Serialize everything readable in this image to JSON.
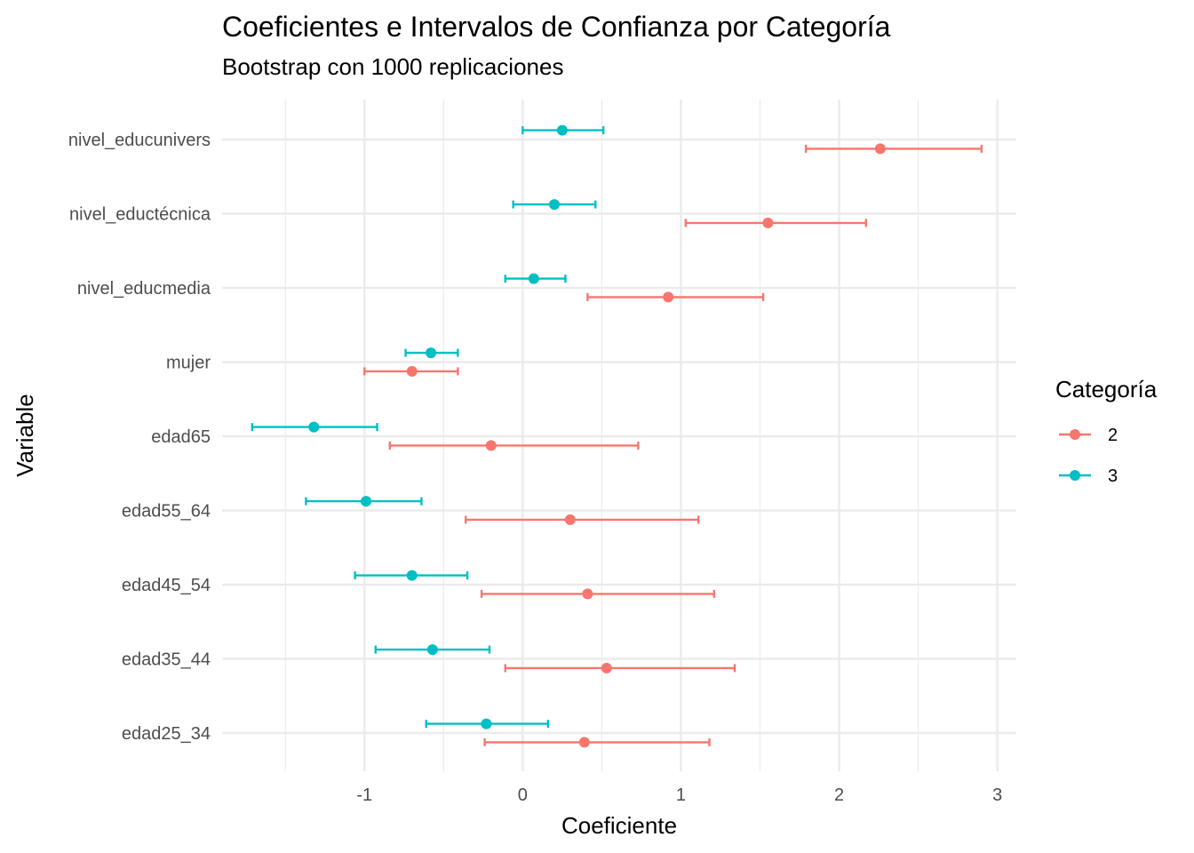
{
  "chart_data": {
    "type": "scatter",
    "title": "Coeficientes e Intervalos de Confianza por Categoría",
    "subtitle": "Bootstrap con 1000 replicaciones",
    "xlabel": "Coeficiente",
    "ylabel": "Variable",
    "xlim": [
      -1.9,
      3.12
    ],
    "x_ticks": [
      -1,
      0,
      1,
      2,
      3
    ],
    "x_tick_labels": [
      "-1",
      "0",
      "1",
      "2",
      "3"
    ],
    "grid": true,
    "legend": {
      "title": "Categoría",
      "placement": "right"
    },
    "categories": [
      "edad25_34",
      "edad35_44",
      "edad45_54",
      "edad55_64",
      "edad65",
      "mujer",
      "nivel_educmedia",
      "nivel_eductécnica",
      "nivel_educunivers"
    ],
    "series": [
      {
        "name": "2",
        "color": "#F8766D",
        "estimate": [
          0.39,
          0.53,
          0.41,
          0.3,
          -0.2,
          -0.7,
          0.92,
          1.55,
          2.26
        ],
        "lower": [
          -0.24,
          -0.11,
          -0.26,
          -0.36,
          -0.84,
          -1.0,
          0.41,
          1.03,
          1.79
        ],
        "upper": [
          1.18,
          1.34,
          1.21,
          1.11,
          0.73,
          -0.41,
          1.52,
          2.17,
          2.9
        ]
      },
      {
        "name": "3",
        "color": "#00BFC4",
        "estimate": [
          -0.23,
          -0.57,
          -0.7,
          -0.99,
          -1.32,
          -0.58,
          0.07,
          0.2,
          0.25
        ],
        "lower": [
          -0.61,
          -0.93,
          -1.06,
          -1.37,
          -1.71,
          -0.74,
          -0.11,
          -0.06,
          0.0
        ],
        "upper": [
          0.16,
          -0.21,
          -0.35,
          -0.64,
          -0.92,
          -0.41,
          0.27,
          0.46,
          0.51
        ]
      }
    ]
  }
}
